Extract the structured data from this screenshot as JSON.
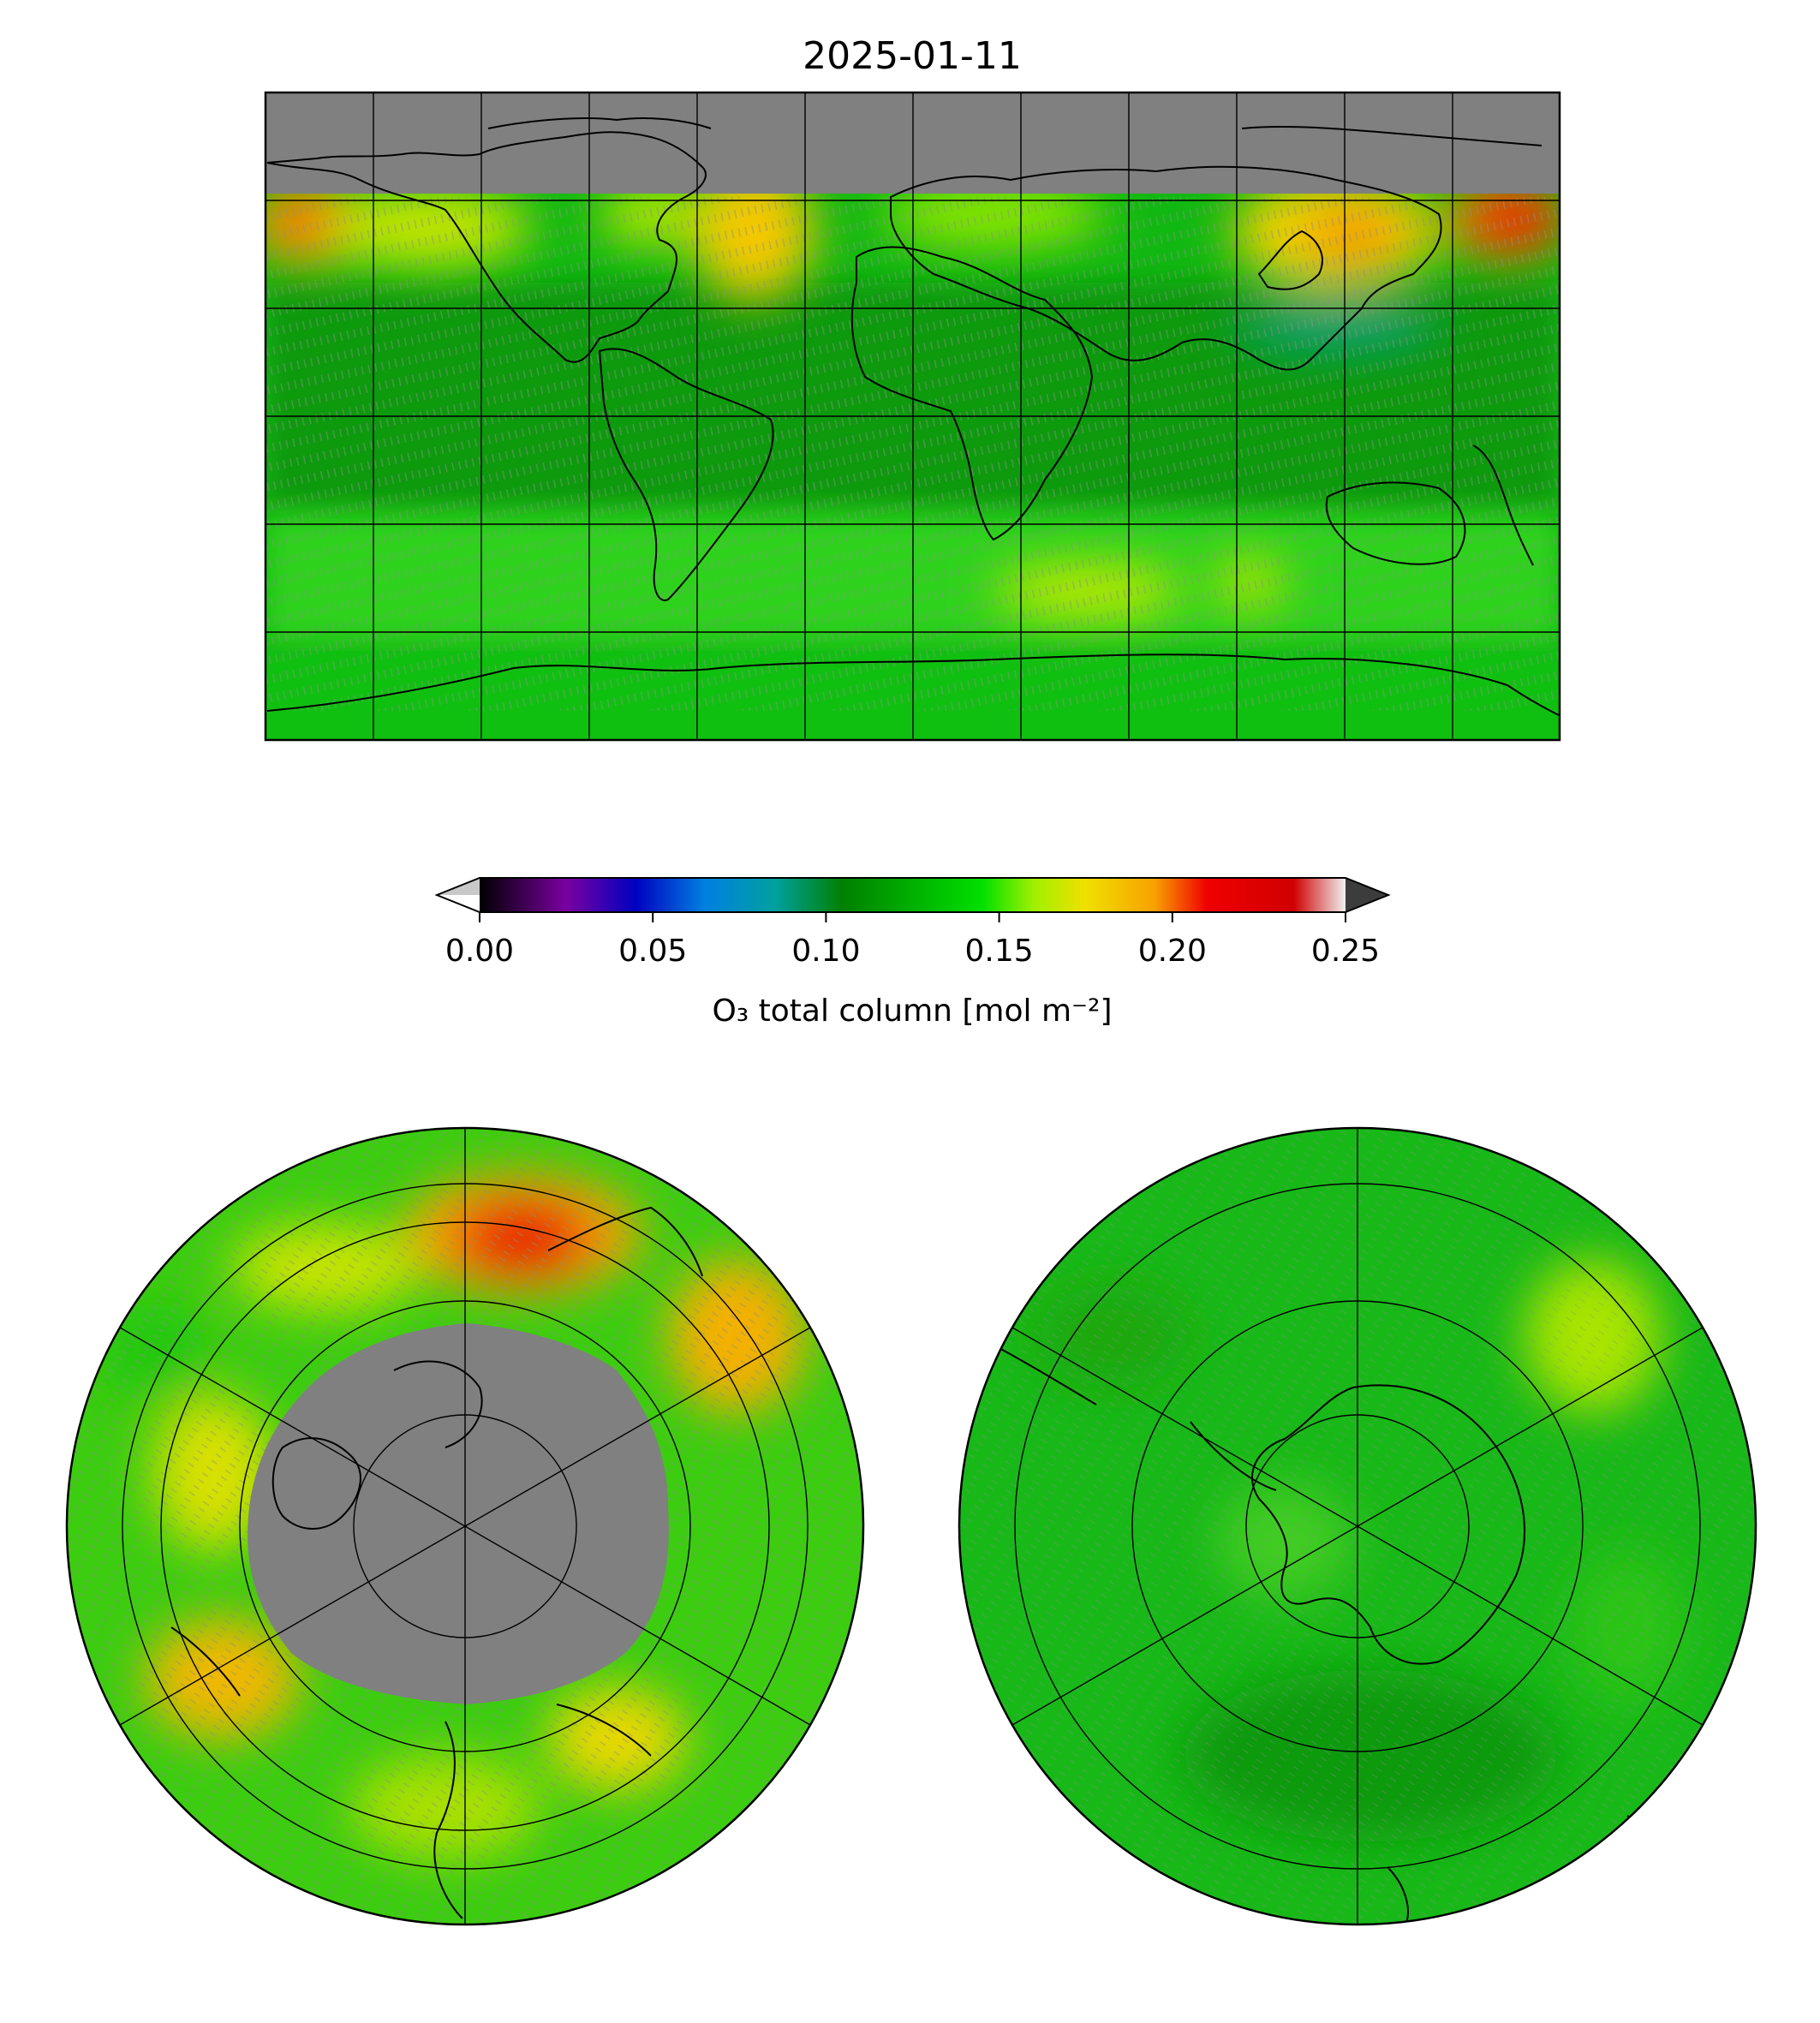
{
  "figure": {
    "title": "2025-01-11"
  },
  "colorbar": {
    "label": "O₃ total column [mol m⁻²]",
    "ticks": [
      "0.00",
      "0.05",
      "0.10",
      "0.15",
      "0.20",
      "0.25"
    ],
    "tick_values": [
      0.0,
      0.05,
      0.1,
      0.15,
      0.2,
      0.25
    ],
    "range": [
      0.0,
      0.25
    ],
    "extend": "both",
    "under_color": "#c8c8c8",
    "over_color": "#3c3c3c",
    "stops": [
      {
        "value": 0.0,
        "color": "#000000"
      },
      {
        "value": 0.025,
        "color": "#7a00a0"
      },
      {
        "value": 0.045,
        "color": "#0000c0"
      },
      {
        "value": 0.065,
        "color": "#0080e0"
      },
      {
        "value": 0.085,
        "color": "#00a0a0"
      },
      {
        "value": 0.105,
        "color": "#008000"
      },
      {
        "value": 0.145,
        "color": "#00e000"
      },
      {
        "value": 0.16,
        "color": "#a0f000"
      },
      {
        "value": 0.175,
        "color": "#f0e000"
      },
      {
        "value": 0.195,
        "color": "#f8a000"
      },
      {
        "value": 0.21,
        "color": "#f00000"
      },
      {
        "value": 0.235,
        "color": "#d00000"
      },
      {
        "value": 0.25,
        "color": "#f0f0f0"
      }
    ]
  },
  "chart_data": [
    {
      "type": "heatmap",
      "projection": "equirectangular global",
      "variable": "O₃ total column",
      "units": "mol m⁻²",
      "lon_range": [
        -180,
        180
      ],
      "lat_range": [
        -90,
        90
      ],
      "gridlines_lon": [
        -150,
        -120,
        -90,
        -60,
        -30,
        0,
        30,
        60,
        90,
        120,
        150
      ],
      "gridlines_lat": [
        -60,
        -30,
        0,
        30,
        60
      ],
      "no_data_region": "north of ~60N (polar night), shown grey",
      "no_data_color": "#808080",
      "background_value": 0.14,
      "features": [
        {
          "region": "NE Asia / Japan",
          "value": 0.225
        },
        {
          "region": "Bering Sea / Alaska",
          "value": 0.205
        },
        {
          "region": "Eastern North America",
          "value": 0.175
        },
        {
          "region": "Siberia",
          "value": 0.18
        },
        {
          "region": "Western North America",
          "value": 0.17
        },
        {
          "region": "Tropical belt",
          "value": 0.12
        },
        {
          "region": "Tropical W Pacific",
          "value": 0.105
        },
        {
          "region": "Southern Indian Ocean ~45S",
          "value": 0.165
        },
        {
          "region": "Antarctica",
          "value": 0.14
        }
      ]
    },
    {
      "type": "heatmap",
      "projection": "north polar orthographic",
      "variable": "O₃ total column",
      "units": "mol m⁻²",
      "gridlines_lat": [
        30,
        45,
        60,
        75
      ],
      "gridlines_lon_spokes": 6,
      "no_data_region": "poleward of ~60N (polar night), grey",
      "features": [
        {
          "region": "Kamchatka / Bering",
          "value": 0.225
        },
        {
          "region": "Eastern Siberia",
          "value": 0.19
        },
        {
          "region": "North America",
          "value": 0.175
        },
        {
          "region": "Europe",
          "value": 0.165
        },
        {
          "region": "Low latitudes",
          "value": 0.15
        }
      ]
    },
    {
      "type": "heatmap",
      "projection": "south polar orthographic",
      "variable": "O₃ total column",
      "units": "mol m⁻²",
      "gridlines_lat": [
        -30,
        -45,
        -60,
        -75
      ],
      "gridlines_lon_spokes": 6,
      "features": [
        {
          "region": "Antarctica",
          "value": 0.14
        },
        {
          "region": "Mid-latitude ring",
          "value": 0.155
        },
        {
          "region": "Lower latitudes",
          "value": 0.135
        }
      ]
    }
  ]
}
